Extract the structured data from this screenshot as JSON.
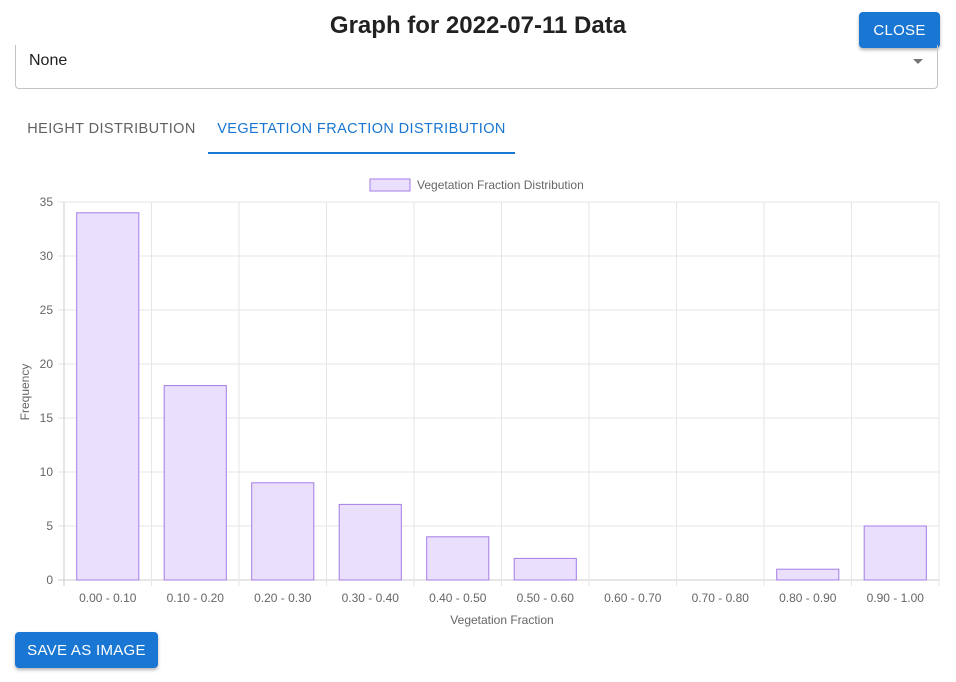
{
  "dialog": {
    "title": "Graph for 2022-07-11 Data",
    "close_label": "CLOSE"
  },
  "select": {
    "value": "None"
  },
  "tabs": [
    {
      "label": "HEIGHT DISTRIBUTION",
      "active": false
    },
    {
      "label": "VEGETATION FRACTION DISTRIBUTION",
      "active": true
    }
  ],
  "footer": {
    "save_label": "SAVE AS IMAGE"
  },
  "colors": {
    "accent": "#1976d2",
    "bar_fill": "#eadffd",
    "bar_border": "#a57ce6"
  },
  "chart_data": {
    "type": "bar",
    "categories": [
      "0.00 - 0.10",
      "0.10 - 0.20",
      "0.20 - 0.30",
      "0.30 - 0.40",
      "0.40 - 0.50",
      "0.50 - 0.60",
      "0.60 - 0.70",
      "0.70 - 0.80",
      "0.80 - 0.90",
      "0.90 - 1.00"
    ],
    "series": [
      {
        "name": "Vegetation Fraction Distribution",
        "values": [
          34,
          18,
          9,
          7,
          4,
          2,
          0,
          0,
          1,
          5
        ]
      }
    ],
    "xlabel": "Vegetation Fraction",
    "ylabel": "Frequency",
    "ylim": [
      0,
      35
    ],
    "yticks": [
      0,
      5,
      10,
      15,
      20,
      25,
      30,
      35
    ],
    "legend": "top",
    "grid": true
  }
}
